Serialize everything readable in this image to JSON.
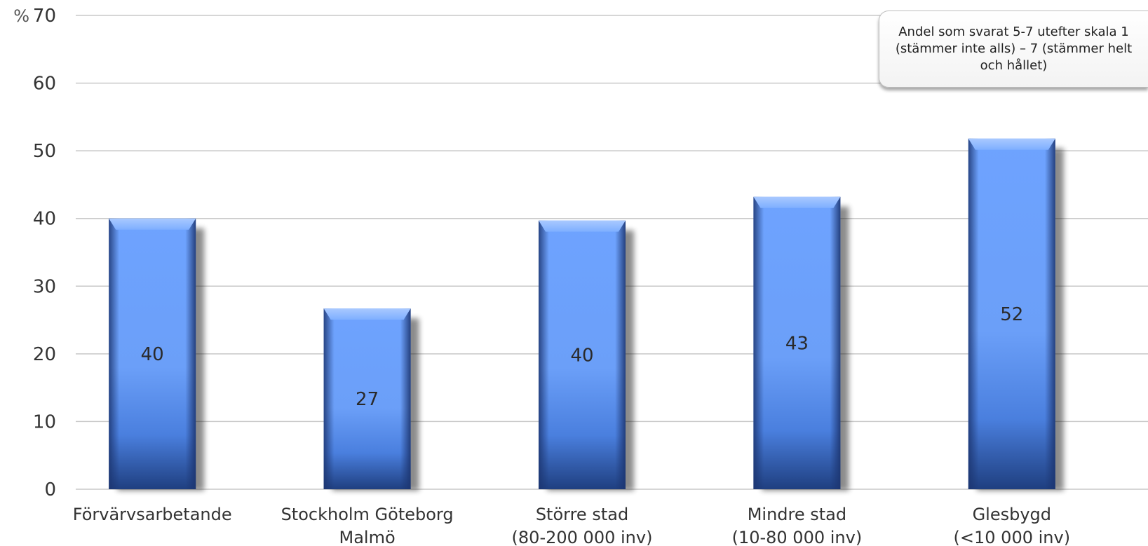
{
  "chart_data": {
    "type": "bar",
    "unit": "%",
    "categories": [
      [
        "Förvärvsarbetande"
      ],
      [
        "Stockholm Göteborg",
        "Malmö"
      ],
      [
        "Större stad",
        "(80-200 000 inv)"
      ],
      [
        "Mindre stad",
        "(10-80 000 inv)"
      ],
      [
        "Glesbygd",
        "(<10 000 inv)"
      ]
    ],
    "values": [
      40,
      27,
      40,
      43,
      52
    ],
    "bar_tops": [
      40,
      26.7,
      39.7,
      43.2,
      51.8
    ],
    "ylim": [
      0,
      70
    ],
    "yticks": [
      0,
      10,
      20,
      30,
      40,
      50,
      60,
      70
    ],
    "grid": true,
    "colors": {
      "bar_light": "#6ea3ff",
      "bar_mid": "#4f86e8",
      "bar_dark": "#1e3f82",
      "grid": "#c8c8c8"
    }
  },
  "note": "Andel som svarat 5-7 utefter skala 1 (stämmer inte alls) – 7 (stämmer helt och hållet)"
}
